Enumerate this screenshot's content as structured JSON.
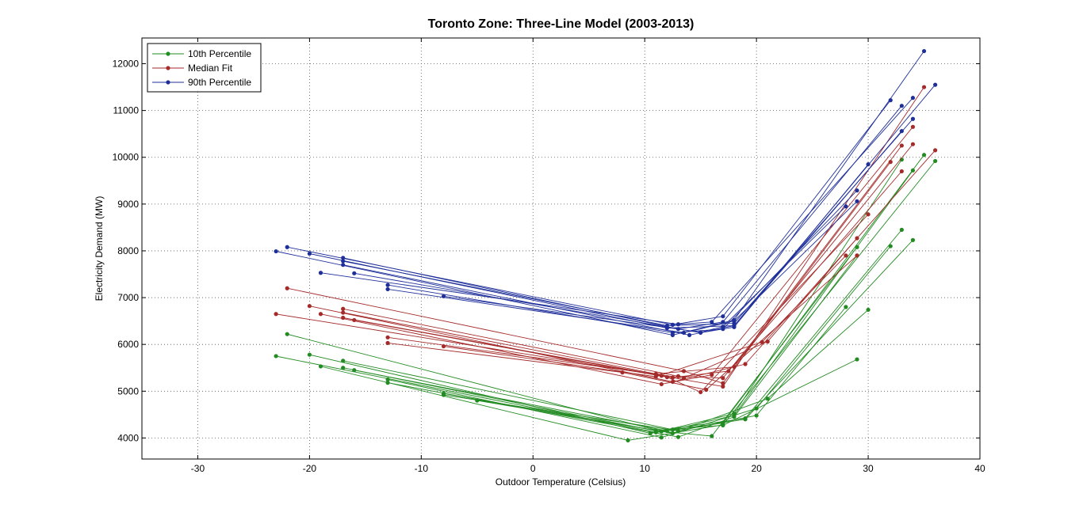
{
  "chart_data": {
    "type": "line",
    "title": "Toronto Zone: Three-Line Model (2003-2013)",
    "xlabel": "Outdoor Temperature (Celsius)",
    "ylabel": "Electricity Demand (MW)",
    "xlim": [
      -35,
      40
    ],
    "ylim": [
      3550,
      12550
    ],
    "xticks": [
      -30,
      -20,
      -10,
      0,
      10,
      20,
      30,
      40
    ],
    "yticks": [
      4000,
      5000,
      6000,
      7000,
      8000,
      9000,
      10000,
      11000,
      12000
    ],
    "grid": true,
    "legend_position": "top-left",
    "series": [
      {
        "name": "10th Percentile",
        "color": "#228b22",
        "lines": [
          [
            [
              -23,
              5750
            ],
            [
              11,
              4120
            ],
            [
              18,
              4520
            ],
            [
              33,
              9950
            ]
          ],
          [
            [
              -22,
              6220
            ],
            [
              11.5,
              4140
            ],
            [
              16,
              4040
            ],
            [
              29,
              8080
            ]
          ],
          [
            [
              -20,
              5780
            ],
            [
              10.5,
              4100
            ],
            [
              17,
              4320
            ],
            [
              35,
              10050
            ]
          ],
          [
            [
              -19,
              5530
            ],
            [
              8.5,
              3950
            ],
            [
              17,
              4280
            ],
            [
              36,
              9920
            ]
          ],
          [
            [
              -17,
              5650
            ],
            [
              12.5,
              4180
            ],
            [
              18,
              4480
            ],
            [
              34,
              9720
            ]
          ],
          [
            [
              -17,
              5500
            ],
            [
              11,
              4150
            ],
            [
              19,
              4420
            ],
            [
              33,
              8450
            ]
          ],
          [
            [
              -16,
              5450
            ],
            [
              12,
              4150
            ],
            [
              19,
              4400
            ],
            [
              34,
              8230
            ]
          ],
          [
            [
              -13,
              5250
            ],
            [
              11.5,
              4010
            ],
            [
              20,
              4630
            ],
            [
              32,
              8100
            ]
          ],
          [
            [
              -13,
              5180
            ],
            [
              13,
              4020
            ],
            [
              18,
              4450
            ],
            [
              29,
              7900
            ]
          ],
          [
            [
              -8,
              4950
            ],
            [
              12.5,
              4100
            ],
            [
              21,
              4840
            ],
            [
              30,
              6740
            ]
          ],
          [
            [
              -8,
              4920
            ],
            [
              13,
              4150
            ],
            [
              20,
              4480
            ],
            [
              28,
              6800
            ]
          ],
          [
            [
              -5,
              4800
            ],
            [
              11,
              4160
            ],
            [
              17,
              4270
            ],
            [
              29,
              5680
            ]
          ]
        ]
      },
      {
        "name": "Median Fit",
        "color": "#a52a2a",
        "lines": [
          [
            [
              -23,
              6650
            ],
            [
              11.5,
              5330
            ],
            [
              17,
              5100
            ],
            [
              35,
              11500
            ]
          ],
          [
            [
              -22,
              7200
            ],
            [
              13.5,
              5430
            ],
            [
              17,
              5170
            ],
            [
              32,
              9900
            ]
          ],
          [
            [
              -20,
              6820
            ],
            [
              12.5,
              5200
            ],
            [
              19,
              5580
            ],
            [
              36,
              10150
            ]
          ],
          [
            [
              -19,
              6650
            ],
            [
              11.5,
              5150
            ],
            [
              16,
              5350
            ],
            [
              34,
              10650
            ]
          ],
          [
            [
              -17,
              6760
            ],
            [
              13,
              5320
            ],
            [
              17,
              5280
            ],
            [
              34,
              10280
            ]
          ],
          [
            [
              -17,
              6680
            ],
            [
              11,
              5370
            ],
            [
              18,
              5520
            ],
            [
              33,
              10250
            ]
          ],
          [
            [
              -17,
              6570
            ],
            [
              12.5,
              5290
            ],
            [
              17.5,
              5430
            ],
            [
              33,
              9700
            ]
          ],
          [
            [
              -16,
              6520
            ],
            [
              12,
              5300
            ],
            [
              15,
              4980
            ],
            [
              30,
              8780
            ]
          ],
          [
            [
              -13,
              6150
            ],
            [
              13.5,
              5280
            ],
            [
              21,
              6060
            ],
            [
              29,
              8270
            ]
          ],
          [
            [
              -13,
              6030
            ],
            [
              8,
              5400
            ],
            [
              15.5,
              5030
            ],
            [
              29,
              7900
            ]
          ],
          [
            [
              -8,
              5960
            ],
            [
              11,
              5310
            ],
            [
              20.5,
              6050
            ],
            [
              28,
              7900
            ]
          ]
        ]
      },
      {
        "name": "90th Percentile",
        "color": "#1f2f9a",
        "lines": [
          [
            [
              -23,
              7990
            ],
            [
              12.5,
              6200
            ],
            [
              18,
              6520
            ],
            [
              35,
              12270
            ]
          ],
          [
            [
              -22,
              8080
            ],
            [
              12.5,
              6420
            ],
            [
              17,
              6600
            ],
            [
              32,
              11220
            ]
          ],
          [
            [
              -20,
              7940
            ],
            [
              12,
              6350
            ],
            [
              18,
              6400
            ],
            [
              36,
              11550
            ]
          ],
          [
            [
              -19,
              7530
            ],
            [
              13,
              6430
            ],
            [
              16,
              6480
            ],
            [
              34,
              11270
            ]
          ],
          [
            [
              -17,
              7850
            ],
            [
              13,
              6330
            ],
            [
              17,
              6480
            ],
            [
              33,
              11100
            ]
          ],
          [
            [
              -17,
              7780
            ],
            [
              12,
              6400
            ],
            [
              18,
              6450
            ],
            [
              34,
              10820
            ]
          ],
          [
            [
              -17,
              7700
            ],
            [
              14,
              6200
            ],
            [
              18,
              6400
            ],
            [
              33,
              10560
            ]
          ],
          [
            [
              -16,
              7520
            ],
            [
              15,
              6250
            ],
            [
              18,
              6370
            ],
            [
              30,
              9850
            ]
          ],
          [
            [
              -13,
              7270
            ],
            [
              12.5,
              6250
            ],
            [
              17,
              6330
            ],
            [
              29,
              9290
            ]
          ],
          [
            [
              -13,
              7180
            ],
            [
              13.5,
              6250
            ],
            [
              18,
              6500
            ],
            [
              29,
              9060
            ]
          ],
          [
            [
              -8,
              7030
            ],
            [
              15,
              6260
            ],
            [
              17,
              6380
            ],
            [
              28,
              8950
            ]
          ]
        ]
      }
    ]
  }
}
